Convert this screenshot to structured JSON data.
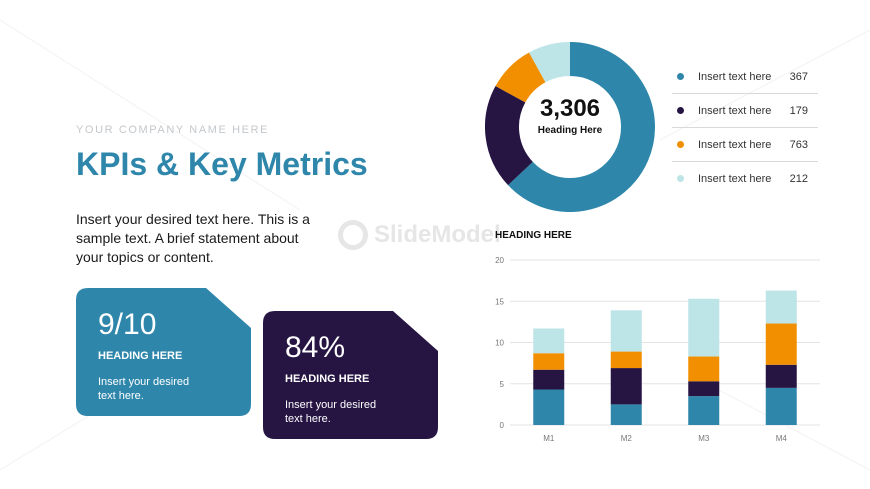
{
  "slide": {
    "company": "YOUR COMPANY NAME HERE",
    "title": "KPIs & Key Metrics",
    "description": "Insert your desired text here. This is a sample text. A brief statement about your topics or content.",
    "watermark": "SlideModel"
  },
  "cards": [
    {
      "value": "9/10",
      "heading": "HEADING HERE",
      "text": "Insert your desired text here.",
      "color": "#2e86ab"
    },
    {
      "value": "84%",
      "heading": "HEADING HERE",
      "text": "Insert your desired text here.",
      "color": "#261543"
    }
  ],
  "donut": {
    "value": "3,306",
    "label": "Heading Here"
  },
  "legend": [
    {
      "label": "Insert text here",
      "value": "367",
      "color": "#2e86ab"
    },
    {
      "label": "Insert text here",
      "value": "179",
      "color": "#261543"
    },
    {
      "label": "Insert text here",
      "value": "763",
      "color": "#f18f01"
    },
    {
      "label": "Insert text here",
      "value": "212",
      "color": "#bde4e7"
    }
  ],
  "bar_heading": "HEADING HERE",
  "chart_data": [
    {
      "type": "pie",
      "categories": [
        "Insert text here",
        "Insert text here",
        "Insert text here",
        "Insert text here"
      ],
      "values": [
        0.63,
        0.2,
        0.09,
        0.08
      ],
      "colors": [
        "#2e86ab",
        "#261543",
        "#f18f01",
        "#bde4e7"
      ],
      "title": "3,306",
      "subtitle": "Heading Here"
    },
    {
      "type": "bar",
      "stacked": true,
      "title": "HEADING HERE",
      "categories": [
        "M1",
        "M2",
        "M3",
        "M4"
      ],
      "series": [
        {
          "values": [
            4.3,
            2.5,
            3.5,
            4.5
          ],
          "color": "#2e86ab"
        },
        {
          "values": [
            2.4,
            4.4,
            1.8,
            2.8
          ],
          "color": "#261543"
        },
        {
          "values": [
            2.0,
            2.0,
            3.0,
            5.0
          ],
          "color": "#f18f01"
        },
        {
          "values": [
            3.0,
            5.0,
            7.0,
            4.0
          ],
          "color": "#bde4e7"
        }
      ],
      "ylim": [
        0,
        20
      ],
      "yticks": [
        0,
        5,
        10,
        15,
        20
      ],
      "grid": true
    }
  ]
}
